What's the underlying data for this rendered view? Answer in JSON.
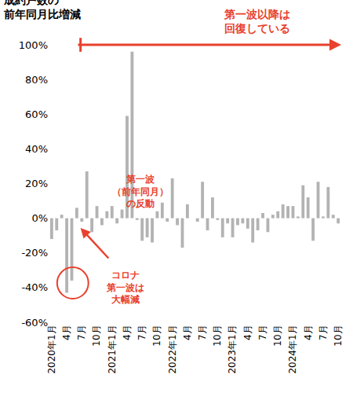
{
  "chart_data": {
    "type": "bar",
    "title": "成約戸数の\n前年同月比増減",
    "categories": [
      "2020年1月",
      null,
      null,
      "4月",
      null,
      null,
      "7月",
      null,
      null,
      "10月",
      null,
      null,
      "2021年1月",
      null,
      null,
      "4月",
      null,
      null,
      "7月",
      null,
      null,
      "10月",
      null,
      null,
      "2022年1月",
      null,
      null,
      "4月",
      null,
      null,
      "7月",
      null,
      null,
      "10月",
      null,
      null,
      "2023年1月",
      null,
      null,
      "4月",
      null,
      null,
      "7月",
      null,
      null,
      "10月",
      null,
      null,
      "2024年1月",
      null,
      null,
      "4月",
      null,
      null,
      "7月",
      null,
      null,
      "10月"
    ],
    "values": [
      -12,
      -7,
      2,
      -43,
      -36,
      6,
      -2,
      27,
      -8,
      7,
      -4,
      4,
      7,
      -3,
      5,
      59,
      96,
      -1,
      -13,
      -11,
      -14,
      4,
      9,
      -2,
      23,
      -4,
      -17,
      8,
      0,
      -2,
      21,
      -7,
      12,
      -1,
      -11,
      -3,
      -11,
      -4,
      -3,
      -6,
      -14,
      -7,
      3,
      -8,
      2,
      4,
      8,
      7,
      7,
      1,
      19,
      12,
      -13,
      21,
      1,
      18,
      2,
      -3
    ],
    "color": "#b3b3b3",
    "ylim": [
      -60,
      100
    ],
    "yticks": [
      {
        "value": -60,
        "label": "-60%"
      },
      {
        "value": -40,
        "label": "-40%"
      },
      {
        "value": -20,
        "label": "-20%"
      },
      {
        "value": 0,
        "label": "0%"
      },
      {
        "value": 20,
        "label": "20%"
      },
      {
        "value": 40,
        "label": "40%"
      },
      {
        "value": 60,
        "label": "60%"
      },
      {
        "value": 80,
        "label": "80%"
      },
      {
        "value": 100,
        "label": "100%"
      }
    ],
    "grid": false,
    "annotations": [
      "第一波以降は\n回復している",
      "第一波\n（前年同月）\nの反動",
      "コロナ\n第一波は\n大幅減"
    ]
  }
}
